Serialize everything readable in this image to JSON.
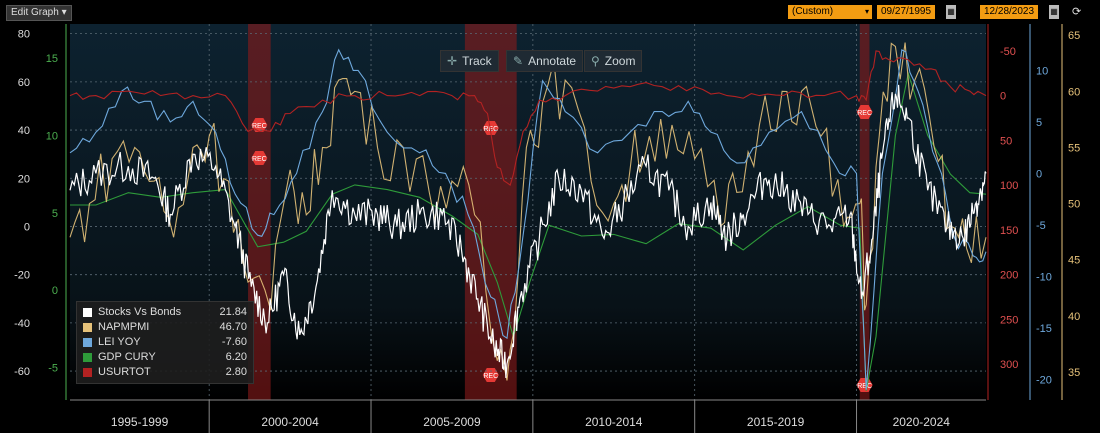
{
  "toolbar": {
    "edit_graph": "Edit Graph",
    "edit_graph_arrow": "▾",
    "period": "(Custom)",
    "start_date": "09/27/1995",
    "end_date": "12/28/2023",
    "refresh_icon": "refresh-icon",
    "calendar_icon": "calendar-icon"
  },
  "tools": [
    {
      "label": "Track",
      "icon": "crosshair-icon",
      "glyph": "✛"
    },
    {
      "label": "Annotate",
      "icon": "pencil-icon",
      "glyph": "✎"
    },
    {
      "label": "Zoom",
      "icon": "magnifier-icon",
      "glyph": "⚲"
    }
  ],
  "recession_label": "REC",
  "colors": {
    "stocks_vs_bonds": "#ffffff",
    "napmpmi": "#e6c27a",
    "lei_yoy": "#6ea8dc",
    "gdp_cury": "#2e9b3a",
    "usurtot": "#b22222",
    "recession": "#8b1a1a",
    "background_top": "#0d2230",
    "background_bottom": "#000000"
  },
  "chart_data": {
    "type": "line",
    "x_categories": [
      "1995-1999",
      "2000-2004",
      "2005-2009",
      "2010-2014",
      "2015-2019",
      "2020-2024"
    ],
    "x_range": [
      1995.7,
      2024.0
    ],
    "recessions": [
      [
        2001.2,
        2001.9
      ],
      [
        2007.9,
        2009.5
      ],
      [
        2020.1,
        2020.4
      ]
    ],
    "axes": {
      "left_outer": {
        "ticks": [
          80,
          60,
          40,
          20,
          0,
          -20,
          -40,
          -60
        ],
        "range": [
          -72,
          84
        ]
      },
      "left_inner": {
        "ticks": [
          15,
          10,
          5,
          0,
          -5
        ],
        "range": [
          -7.1,
          17.2
        ]
      },
      "right_usurtot": {
        "ticks": [
          -50,
          0,
          50,
          100,
          150,
          200,
          250,
          300
        ],
        "range": [
          340,
          -80
        ],
        "inverted": true
      },
      "right_lei": {
        "ticks": [
          10,
          5,
          0,
          -5,
          -10,
          -15,
          -20
        ],
        "range": [
          -22,
          14.5
        ]
      },
      "right_napmpmi": {
        "ticks": [
          65,
          60,
          55,
          50,
          45,
          40,
          35
        ],
        "range": [
          32.5,
          66
        ]
      }
    },
    "series": [
      {
        "name": "Stocks Vs Bonds",
        "last": "21.84",
        "axis": "left_outer",
        "points": [
          [
            1995.7,
            15
          ],
          [
            1996.5,
            22
          ],
          [
            1997.5,
            25
          ],
          [
            1998.3,
            20
          ],
          [
            1998.8,
            5
          ],
          [
            1999.5,
            30
          ],
          [
            2000.2,
            25
          ],
          [
            2000.8,
            0
          ],
          [
            2001.3,
            -25
          ],
          [
            2001.8,
            -40
          ],
          [
            2002.3,
            -20
          ],
          [
            2002.8,
            -45
          ],
          [
            2003.3,
            -25
          ],
          [
            2003.8,
            15
          ],
          [
            2004.5,
            5
          ],
          [
            2005.2,
            5
          ],
          [
            2005.8,
            0
          ],
          [
            2006.5,
            5
          ],
          [
            2007.2,
            5
          ],
          [
            2007.8,
            -10
          ],
          [
            2008.3,
            -30
          ],
          [
            2008.8,
            -50
          ],
          [
            2009.2,
            -57
          ],
          [
            2009.6,
            -30
          ],
          [
            2010.2,
            -5
          ],
          [
            2010.8,
            20
          ],
          [
            2011.5,
            15
          ],
          [
            2012.2,
            -5
          ],
          [
            2012.8,
            10
          ],
          [
            2013.5,
            25
          ],
          [
            2014.2,
            15
          ],
          [
            2014.8,
            0
          ],
          [
            2015.5,
            10
          ],
          [
            2016.0,
            -5
          ],
          [
            2016.5,
            5
          ],
          [
            2017.2,
            20
          ],
          [
            2017.8,
            15
          ],
          [
            2018.5,
            5
          ],
          [
            2019.2,
            0
          ],
          [
            2019.8,
            5
          ],
          [
            2020.15,
            -30
          ],
          [
            2020.5,
            -5
          ],
          [
            2020.8,
            30
          ],
          [
            2021.2,
            55
          ],
          [
            2021.6,
            45
          ],
          [
            2022.2,
            15
          ],
          [
            2022.8,
            0
          ],
          [
            2023.3,
            -5
          ],
          [
            2023.7,
            10
          ],
          [
            2024.0,
            22
          ]
        ]
      },
      {
        "name": "NAPMPMI",
        "last": "46.70",
        "axis": "right_napmpmi",
        "points": [
          [
            1995.7,
            47
          ],
          [
            1996.3,
            50
          ],
          [
            1997.0,
            54
          ],
          [
            1997.7,
            55
          ],
          [
            1998.3,
            52
          ],
          [
            1998.9,
            47
          ],
          [
            1999.5,
            55
          ],
          [
            2000.0,
            56
          ],
          [
            2000.6,
            52
          ],
          [
            2001.2,
            43
          ],
          [
            2001.9,
            40.5
          ],
          [
            2002.5,
            53
          ],
          [
            2003.0,
            49
          ],
          [
            2003.5,
            55
          ],
          [
            2004.0,
            61
          ],
          [
            2004.5,
            60
          ],
          [
            2005.2,
            55
          ],
          [
            2006.0,
            55
          ],
          [
            2006.8,
            51
          ],
          [
            2007.5,
            52
          ],
          [
            2008.2,
            49
          ],
          [
            2008.9,
            36
          ],
          [
            2009.3,
            37
          ],
          [
            2009.8,
            55
          ],
          [
            2010.3,
            59
          ],
          [
            2011.0,
            61
          ],
          [
            2011.8,
            52
          ],
          [
            2012.5,
            50
          ],
          [
            2013.0,
            53
          ],
          [
            2013.6,
            56
          ],
          [
            2014.3,
            57
          ],
          [
            2015.0,
            54
          ],
          [
            2015.8,
            48
          ],
          [
            2016.3,
            51
          ],
          [
            2017.0,
            57
          ],
          [
            2017.7,
            60
          ],
          [
            2018.3,
            60
          ],
          [
            2018.9,
            56
          ],
          [
            2019.6,
            48
          ],
          [
            2020.1,
            50
          ],
          [
            2020.3,
            41
          ],
          [
            2020.7,
            56
          ],
          [
            2021.2,
            64
          ],
          [
            2021.8,
            61
          ],
          [
            2022.4,
            55
          ],
          [
            2022.9,
            48
          ],
          [
            2023.4,
            46
          ],
          [
            2024.0,
            47
          ]
        ]
      },
      {
        "name": "LEI YOY",
        "last": "-7.60",
        "axis": "right_lei",
        "points": [
          [
            1995.7,
            2
          ],
          [
            1996.5,
            4
          ],
          [
            1997.3,
            8
          ],
          [
            1998.0,
            7
          ],
          [
            1998.8,
            5
          ],
          [
            1999.5,
            7
          ],
          [
            2000.2,
            4
          ],
          [
            2000.8,
            -2
          ],
          [
            2001.5,
            -6
          ],
          [
            2002.0,
            -4
          ],
          [
            2002.7,
            0
          ],
          [
            2003.5,
            6
          ],
          [
            2004.0,
            12
          ],
          [
            2004.6,
            10
          ],
          [
            2005.5,
            4
          ],
          [
            2006.5,
            2
          ],
          [
            2007.3,
            0
          ],
          [
            2008.0,
            -4
          ],
          [
            2008.7,
            -12
          ],
          [
            2009.2,
            -16
          ],
          [
            2009.7,
            -6
          ],
          [
            2010.3,
            9
          ],
          [
            2011.0,
            6
          ],
          [
            2012.0,
            2
          ],
          [
            2013.0,
            4
          ],
          [
            2014.0,
            6
          ],
          [
            2014.8,
            7
          ],
          [
            2015.5,
            4
          ],
          [
            2016.3,
            1
          ],
          [
            2017.3,
            4
          ],
          [
            2018.3,
            6
          ],
          [
            2019.3,
            1
          ],
          [
            2020.0,
            0
          ],
          [
            2020.3,
            -21
          ],
          [
            2020.8,
            0
          ],
          [
            2021.4,
            12
          ],
          [
            2021.9,
            8
          ],
          [
            2022.5,
            1
          ],
          [
            2023.0,
            -6
          ],
          [
            2023.6,
            -8
          ],
          [
            2024.0,
            -7.6
          ]
        ]
      },
      {
        "name": "GDP CURY",
        "last": "6.20",
        "axis": "left_inner",
        "points": [
          [
            1995.7,
            5.5
          ],
          [
            1996.5,
            5.5
          ],
          [
            1997.5,
            6.3
          ],
          [
            1998.5,
            6
          ],
          [
            1999.5,
            6.3
          ],
          [
            2000.5,
            6.5
          ],
          [
            2001.5,
            2.8
          ],
          [
            2002.3,
            3.1
          ],
          [
            2003.0,
            3.8
          ],
          [
            2003.8,
            6.2
          ],
          [
            2004.5,
            6.8
          ],
          [
            2005.5,
            6.5
          ],
          [
            2006.5,
            6.0
          ],
          [
            2007.5,
            4.8
          ],
          [
            2008.3,
            3.6
          ],
          [
            2008.9,
            0.5
          ],
          [
            2009.4,
            -3.0
          ],
          [
            2009.9,
            0.5
          ],
          [
            2010.5,
            4.2
          ],
          [
            2011.5,
            3.5
          ],
          [
            2012.5,
            3.6
          ],
          [
            2013.5,
            3.0
          ],
          [
            2014.5,
            4.3
          ],
          [
            2015.5,
            4.0
          ],
          [
            2016.5,
            2.6
          ],
          [
            2017.5,
            4.2
          ],
          [
            2018.5,
            5.4
          ],
          [
            2019.5,
            4.2
          ],
          [
            2020.1,
            4.0
          ],
          [
            2020.3,
            -6.5
          ],
          [
            2020.6,
            -3.0
          ],
          [
            2021.2,
            10
          ],
          [
            2021.6,
            14
          ],
          [
            2022.2,
            10
          ],
          [
            2022.9,
            7.5
          ],
          [
            2023.5,
            6.3
          ],
          [
            2024.0,
            6.2
          ]
        ]
      },
      {
        "name": "USURTOT",
        "last": "2.80",
        "axis": "right_usurtot",
        "points": [
          [
            1995.7,
            0
          ],
          [
            1996.5,
            0
          ],
          [
            1997.5,
            -5
          ],
          [
            1998.5,
            0
          ],
          [
            1999.5,
            0
          ],
          [
            2000.5,
            0
          ],
          [
            2001.2,
            40
          ],
          [
            2001.9,
            40
          ],
          [
            2002.5,
            20
          ],
          [
            2003.5,
            5
          ],
          [
            2004.5,
            0
          ],
          [
            2005.5,
            0
          ],
          [
            2006.5,
            0
          ],
          [
            2007.5,
            0
          ],
          [
            2008.2,
            0
          ],
          [
            2008.6,
            20
          ],
          [
            2008.9,
            80
          ],
          [
            2009.3,
            100
          ],
          [
            2009.7,
            40
          ],
          [
            2010.2,
            5
          ],
          [
            2011.0,
            0
          ],
          [
            2012.0,
            -5
          ],
          [
            2013.0,
            -10
          ],
          [
            2014.0,
            -10
          ],
          [
            2015.0,
            -10
          ],
          [
            2016.0,
            0
          ],
          [
            2017.0,
            0
          ],
          [
            2018.0,
            -5
          ],
          [
            2019.0,
            0
          ],
          [
            2020.0,
            0
          ],
          [
            2020.3,
            5
          ],
          [
            2020.6,
            -50
          ],
          [
            2021.0,
            -40
          ],
          [
            2021.6,
            -40
          ],
          [
            2022.3,
            -30
          ],
          [
            2022.9,
            -10
          ],
          [
            2023.5,
            -5
          ],
          [
            2024.0,
            0
          ]
        ]
      }
    ]
  }
}
